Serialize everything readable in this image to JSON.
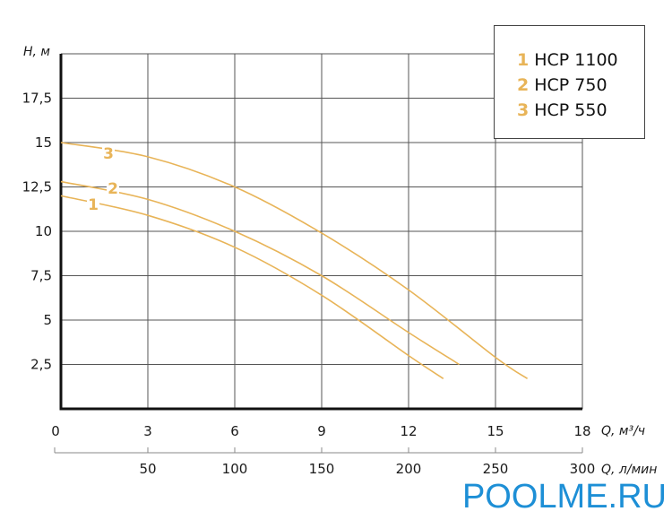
{
  "chart_data": {
    "type": "line",
    "title": "",
    "xlabel": "Q, м³/ч",
    "xlabel_secondary": "Q, л/мин",
    "ylabel": "H, м",
    "xlim": [
      0,
      18
    ],
    "ylim": [
      0,
      20
    ],
    "grid": true,
    "legend_position": "top-right",
    "x_ticks": [
      "0",
      "3",
      "6",
      "9",
      "12",
      "15",
      "18"
    ],
    "x_ticks_secondary": [
      "50",
      "100",
      "150",
      "200",
      "250",
      "300"
    ],
    "y_ticks": [
      "2,5",
      "5",
      "7,5",
      "10",
      "12,5",
      "15",
      "17,5"
    ],
    "color": "#e8b458",
    "series": [
      {
        "name": "HCP 1100",
        "label": "1",
        "x": [
          0,
          3,
          6,
          9,
          12,
          13.2
        ],
        "y": [
          12.0,
          10.9,
          9.1,
          6.4,
          3.0,
          1.7
        ]
      },
      {
        "name": "HCP 750",
        "label": "2",
        "x": [
          0,
          3,
          6,
          9,
          12,
          13.75
        ],
        "y": [
          12.8,
          11.8,
          10.0,
          7.5,
          4.3,
          2.5
        ]
      },
      {
        "name": "HCP 550",
        "label": "3",
        "x": [
          0,
          3,
          6,
          9,
          12,
          15,
          16.1
        ],
        "y": [
          15.0,
          14.2,
          12.5,
          9.9,
          6.7,
          2.9,
          1.7
        ]
      }
    ]
  },
  "legend": [
    {
      "num": "1",
      "name": "HCP 1100"
    },
    {
      "num": "2",
      "name": "HCP 750"
    },
    {
      "num": "3",
      "name": "HCP 550"
    }
  ],
  "axes": {
    "y_title": "H, м",
    "x_title_main": "Q, м³/ч",
    "x_title_secondary": "Q, л/мин"
  },
  "watermark": "POOLME.RU"
}
